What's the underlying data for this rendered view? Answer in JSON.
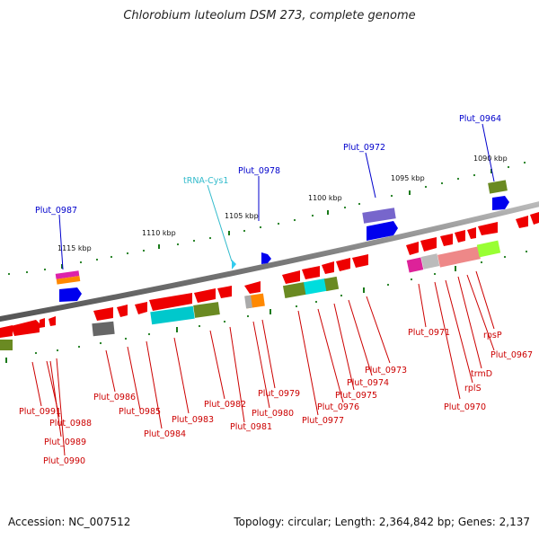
{
  "title": "Chlorobium luteolum DSM 273, complete genome",
  "footer": {
    "accession": "Accession: NC_007512",
    "topology": "Topology: circular; Length: 2,364,842 bp; Genes: 2,137"
  },
  "colors": {
    "gene_red": "#ff0000",
    "gene_blue": "#0000ff",
    "trna_cyan": "#33ccee",
    "label_red": "#cc0000",
    "label_blue": "#0000cc",
    "label_cyan": "#33bbcc",
    "tick_green": "#1a7a1a",
    "backbone": "#888888"
  },
  "scale": {
    "ticks": [
      {
        "label": "1115 kbp"
      },
      {
        "label": "1110 kbp"
      },
      {
        "label": "1105 kbp"
      },
      {
        "label": "1100 kbp"
      },
      {
        "label": "1095 kbp"
      },
      {
        "label": "1090 kbp"
      }
    ]
  },
  "labels": {
    "top": [
      {
        "text": "Plut_0987",
        "color": "blue"
      },
      {
        "text": "tRNA-Cys1",
        "color": "cyan"
      },
      {
        "text": "Plut_0978",
        "color": "blue"
      },
      {
        "text": "Plut_0972",
        "color": "blue"
      },
      {
        "text": "Plut_0964",
        "color": "blue"
      }
    ],
    "bottom": [
      {
        "text": "Plut_0991"
      },
      {
        "text": "Plut_0988"
      },
      {
        "text": "Plut_0989"
      },
      {
        "text": "Plut_0990"
      },
      {
        "text": "Plut_0986"
      },
      {
        "text": "Plut_0985"
      },
      {
        "text": "Plut_0984"
      },
      {
        "text": "Plut_0983"
      },
      {
        "text": "Plut_0982"
      },
      {
        "text": "Plut_0981"
      },
      {
        "text": "Plut_0980"
      },
      {
        "text": "Plut_0979"
      },
      {
        "text": "Plut_0977"
      },
      {
        "text": "Plut_0976"
      },
      {
        "text": "Plut_0975"
      },
      {
        "text": "Plut_0974"
      },
      {
        "text": "Plut_0973"
      },
      {
        "text": "Plut_0971"
      },
      {
        "text": "Plut_0970"
      },
      {
        "text": "rplS"
      },
      {
        "text": "trmD"
      },
      {
        "text": "Plut_0967"
      },
      {
        "text": "rpsP"
      }
    ]
  }
}
